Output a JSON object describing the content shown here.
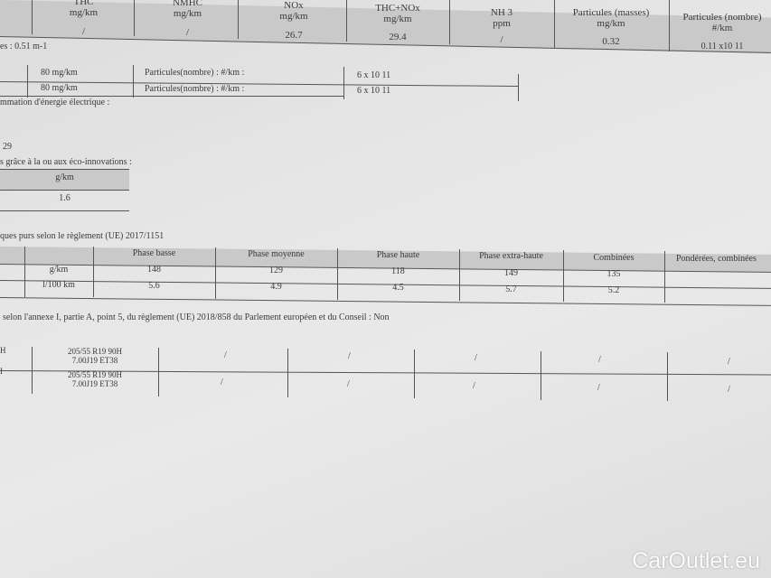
{
  "emissions_table": {
    "headers": [
      {
        "name": "THC",
        "unit": "mg/km"
      },
      {
        "name": "NMHC",
        "unit": "mg/km"
      },
      {
        "name": "NOx",
        "unit": "mg/km"
      },
      {
        "name": "THC+NOx",
        "unit": "mg/km"
      },
      {
        "name": "NH 3",
        "unit": "ppm"
      },
      {
        "name": "Particules (masses)",
        "unit": "mg/km"
      },
      {
        "name": "Particules (nombre)",
        "unit": "#/km"
      }
    ],
    "values": [
      "/",
      "/",
      "26.7",
      "29.4",
      "/",
      "0.32",
      "0.11 x10 11"
    ]
  },
  "smoke_line": "es : 0.51 m-1",
  "limits_table": {
    "rows": [
      {
        "value": "80 mg/km",
        "label": "Particules(nombre) : #/km :",
        "limit": "6 x 10 11"
      },
      {
        "value": "80 mg/km",
        "label": "Particules(nombre) : #/km :",
        "limit": "6 x 10 11"
      }
    ]
  },
  "electric_line": "mmation d'énergie électrique :",
  "number_line": "29",
  "eco_line": "s grâce à la ou aux éco-innovations :",
  "eco_table": {
    "header": "g/km",
    "value": "1.6"
  },
  "wltp_title": "ques purs selon le règlement (UE) 2017/1151",
  "wltp_table": {
    "headers": [
      "Phase basse",
      "Phase moyenne",
      "Phase haute",
      "Phase extra-haute",
      "Combinées",
      "Pondérées, combinées"
    ],
    "rows": [
      {
        "unit": "g/km",
        "values": [
          "148",
          "129",
          "118",
          "149",
          "135",
          ""
        ]
      },
      {
        "unit": "l/100 km",
        "values": [
          "5.6",
          "4.9",
          "4.5",
          "5.7",
          "5.2",
          ""
        ]
      }
    ]
  },
  "annex_line": "selon l'annexe I, partie A, point 5, du règlement (UE) 2018/858 du Parlement européen et du Conseil : Non",
  "tyre_table": {
    "rows": [
      {
        "axle": "H",
        "tyre": "205/55 R19 90H",
        "rim": "7.00J19 ET38"
      },
      {
        "axle": "I",
        "tyre": "205/55 R19 90H",
        "rim": "7.00J19 ET38"
      }
    ],
    "empty_mark": "/"
  },
  "watermark": "CarOutlet.eu"
}
